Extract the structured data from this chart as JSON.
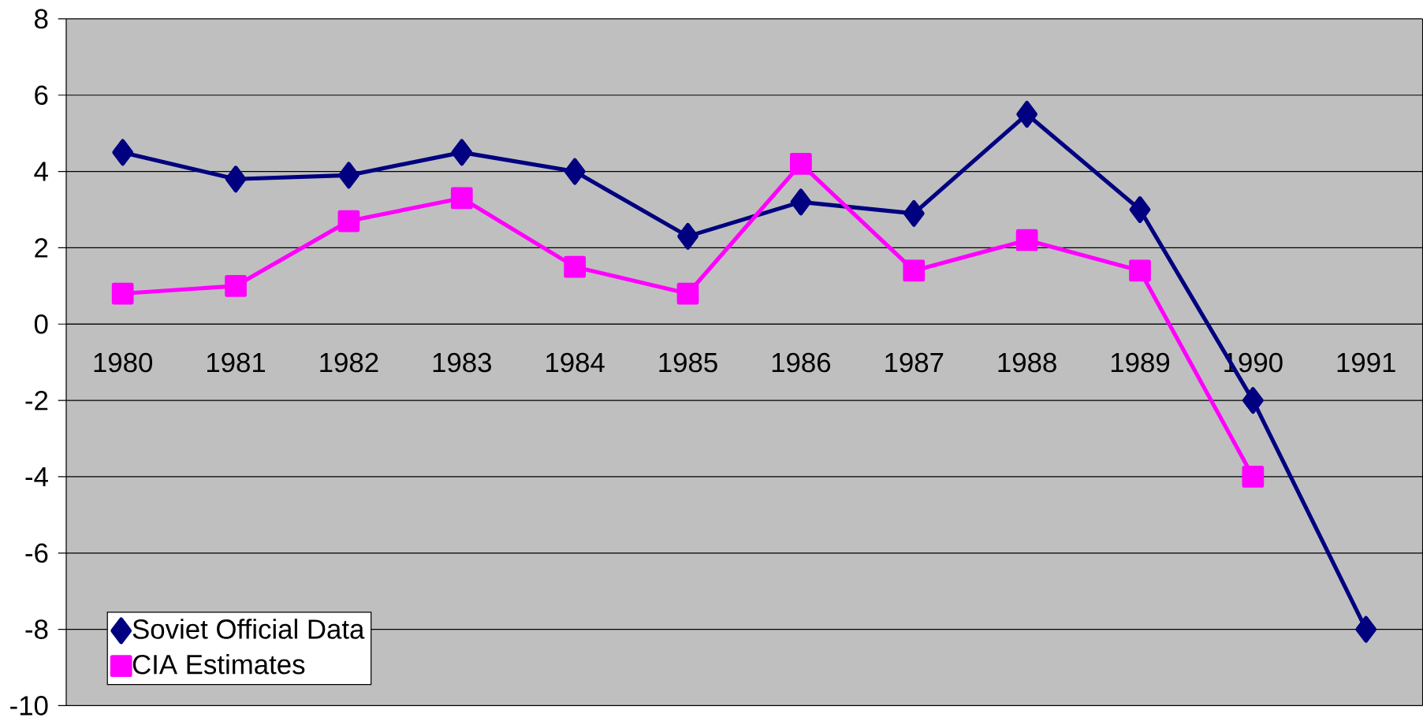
{
  "chart_data": {
    "type": "line",
    "categories": [
      "1980",
      "1981",
      "1982",
      "1983",
      "1984",
      "1985",
      "1986",
      "1987",
      "1988",
      "1989",
      "1990",
      "1991"
    ],
    "series": [
      {
        "name": "Soviet Official Data",
        "color": "#000080",
        "marker": "diamond",
        "values": [
          4.5,
          3.8,
          3.9,
          4.5,
          4.0,
          2.3,
          3.2,
          2.9,
          5.5,
          3.0,
          -2.0,
          -8.0
        ]
      },
      {
        "name": "CIA Estimates",
        "color": "#ff00ff",
        "marker": "square",
        "values": [
          0.8,
          1.0,
          2.7,
          3.3,
          1.5,
          0.8,
          4.2,
          1.4,
          2.2,
          1.4,
          -4.0,
          null
        ]
      }
    ],
    "ylim": [
      -10,
      8
    ],
    "yticks": [
      -10,
      -8,
      -6,
      -4,
      -2,
      0,
      2,
      4,
      6,
      8
    ],
    "grid": "y",
    "legend": "bottom left",
    "line_style": "solid"
  }
}
